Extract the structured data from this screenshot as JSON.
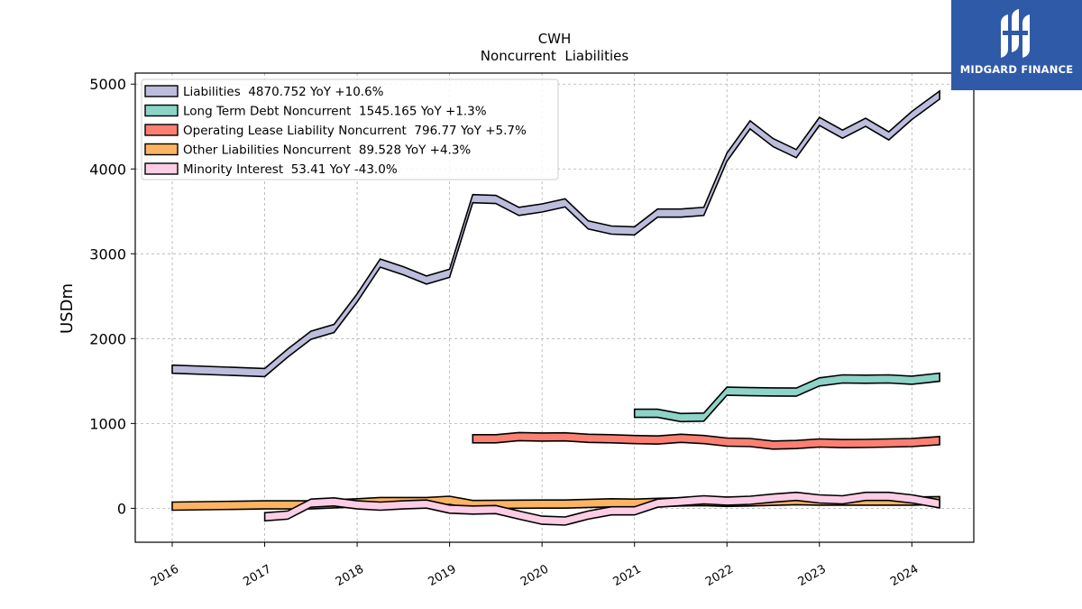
{
  "chart_data": {
    "type": "line",
    "title": "CWH",
    "subtitle": "Noncurrent  Liabilities",
    "ylabel": "USDm",
    "xlabel": "",
    "ylim": [
      -400,
      5130
    ],
    "xlim": [
      2015.6,
      2024.67
    ],
    "yticks": [
      "0",
      "1000",
      "2000",
      "3000",
      "4000",
      "5000"
    ],
    "xticks": [
      "2016",
      "2017",
      "2018",
      "2019",
      "2020",
      "2021",
      "2022",
      "2023",
      "2024"
    ],
    "grid": true,
    "legend_position": "top-left",
    "series": [
      {
        "name": "Liabilities",
        "legend": "Liabilities  4870.752 YoY +10.6%",
        "color": "#bcbddc",
        "points": [
          [
            2016.0,
            1640
          ],
          [
            2017.0,
            1600
          ],
          [
            2017.25,
            1830
          ],
          [
            2017.5,
            2040
          ],
          [
            2017.75,
            2120
          ],
          [
            2018.0,
            2480
          ],
          [
            2018.25,
            2890
          ],
          [
            2018.5,
            2800
          ],
          [
            2018.75,
            2690
          ],
          [
            2019.0,
            2770
          ],
          [
            2019.25,
            3650
          ],
          [
            2019.5,
            3640
          ],
          [
            2019.75,
            3500
          ],
          [
            2020.0,
            3540
          ],
          [
            2020.25,
            3600
          ],
          [
            2020.5,
            3340
          ],
          [
            2020.75,
            3280
          ],
          [
            2021.0,
            3270
          ],
          [
            2021.25,
            3480
          ],
          [
            2021.5,
            3480
          ],
          [
            2021.75,
            3500
          ],
          [
            2022.0,
            4140
          ],
          [
            2022.25,
            4520
          ],
          [
            2022.5,
            4310
          ],
          [
            2022.75,
            4180
          ],
          [
            2023.0,
            4560
          ],
          [
            2023.25,
            4410
          ],
          [
            2023.5,
            4550
          ],
          [
            2023.75,
            4390
          ],
          [
            2024.0,
            4630
          ],
          [
            2024.3,
            4871
          ]
        ]
      },
      {
        "name": "Long Term Debt Noncurrent",
        "legend": "Long Term Debt Noncurrent  1545.165 YoY +1.3%",
        "color": "#8dd3c7",
        "points": [
          [
            2021.0,
            1120
          ],
          [
            2021.25,
            1120
          ],
          [
            2021.5,
            1070
          ],
          [
            2021.75,
            1075
          ],
          [
            2022.0,
            1380
          ],
          [
            2022.25,
            1375
          ],
          [
            2022.5,
            1372
          ],
          [
            2022.75,
            1370
          ],
          [
            2023.0,
            1490
          ],
          [
            2023.25,
            1525
          ],
          [
            2023.5,
            1522
          ],
          [
            2023.75,
            1525
          ],
          [
            2024.0,
            1510
          ],
          [
            2024.3,
            1545
          ]
        ]
      },
      {
        "name": "Operating Lease Liability Noncurrent",
        "legend": "Operating Lease Liability Noncurrent  796.77 YoY +5.7%",
        "color": "#fb8072",
        "points": [
          [
            2019.25,
            820
          ],
          [
            2019.5,
            820
          ],
          [
            2019.75,
            845
          ],
          [
            2020.0,
            840
          ],
          [
            2020.25,
            842
          ],
          [
            2020.5,
            825
          ],
          [
            2020.75,
            820
          ],
          [
            2021.0,
            810
          ],
          [
            2021.25,
            805
          ],
          [
            2021.5,
            825
          ],
          [
            2021.75,
            810
          ],
          [
            2022.0,
            780
          ],
          [
            2022.25,
            775
          ],
          [
            2022.5,
            745
          ],
          [
            2022.75,
            752
          ],
          [
            2023.0,
            770
          ],
          [
            2023.25,
            762
          ],
          [
            2023.5,
            764
          ],
          [
            2023.75,
            770
          ],
          [
            2024.0,
            775
          ],
          [
            2024.3,
            797
          ]
        ]
      },
      {
        "name": "Other Liabilities Noncurrent",
        "legend": "Other Liabilities Noncurrent  89.528 YoY +4.3%",
        "color": "#fdb462",
        "points": [
          [
            2016.0,
            25
          ],
          [
            2017.0,
            40
          ],
          [
            2017.5,
            40
          ],
          [
            2018.0,
            65
          ],
          [
            2018.25,
            80
          ],
          [
            2018.75,
            80
          ],
          [
            2019.0,
            95
          ],
          [
            2019.25,
            45
          ],
          [
            2020.0,
            50
          ],
          [
            2020.25,
            50
          ],
          [
            2020.75,
            65
          ],
          [
            2021.0,
            60
          ],
          [
            2021.25,
            70
          ],
          [
            2021.75,
            80
          ],
          [
            2022.0,
            70
          ],
          [
            2022.25,
            75
          ],
          [
            2022.75,
            90
          ],
          [
            2023.0,
            85
          ],
          [
            2023.5,
            85
          ],
          [
            2024.0,
            85
          ],
          [
            2024.3,
            90
          ]
        ]
      },
      {
        "name": "Minority Interest",
        "legend": "Minority Interest  53.41 YoY -43.0%",
        "color": "#fccde5",
        "points": [
          [
            2017.0,
            -100
          ],
          [
            2017.25,
            -80
          ],
          [
            2017.5,
            60
          ],
          [
            2017.75,
            75
          ],
          [
            2018.0,
            40
          ],
          [
            2018.25,
            25
          ],
          [
            2018.5,
            40
          ],
          [
            2018.75,
            50
          ],
          [
            2019.0,
            -10
          ],
          [
            2019.25,
            -20
          ],
          [
            2019.5,
            -15
          ],
          [
            2019.75,
            -80
          ],
          [
            2020.0,
            -140
          ],
          [
            2020.25,
            -150
          ],
          [
            2020.5,
            -80
          ],
          [
            2020.75,
            -30
          ],
          [
            2021.0,
            -30
          ],
          [
            2021.25,
            60
          ],
          [
            2021.5,
            80
          ],
          [
            2021.75,
            100
          ],
          [
            2022.0,
            85
          ],
          [
            2022.25,
            95
          ],
          [
            2022.5,
            120
          ],
          [
            2022.75,
            140
          ],
          [
            2023.0,
            110
          ],
          [
            2023.25,
            100
          ],
          [
            2023.5,
            140
          ],
          [
            2023.75,
            140
          ],
          [
            2024.0,
            110
          ],
          [
            2024.3,
            53
          ]
        ]
      }
    ]
  },
  "brand": {
    "name": "MIDGARD FINANCE",
    "bg_color": "#2f5aa8",
    "icon": "midgard-logo-icon"
  }
}
